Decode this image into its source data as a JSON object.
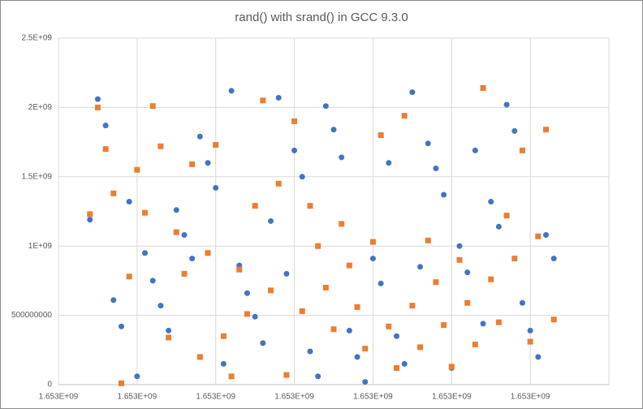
{
  "chart_data": {
    "type": "scatter",
    "title": "rand() with srand() in GCC 9.3.0",
    "x": [
      1653000004,
      1653000005,
      1653000006,
      1653000007,
      1653000008,
      1653000009,
      1653000010,
      1653000011,
      1653000012,
      1653000013,
      1653000014,
      1653000015,
      1653000016,
      1653000017,
      1653000018,
      1653000019,
      1653000020,
      1653000021,
      1653000022,
      1653000023,
      1653000024,
      1653000025,
      1653000026,
      1653000027,
      1653000028,
      1653000029,
      1653000030,
      1653000031,
      1653000032,
      1653000033,
      1653000034,
      1653000035,
      1653000036,
      1653000037,
      1653000038,
      1653000039,
      1653000040,
      1653000041,
      1653000042,
      1653000043,
      1653000044,
      1653000045,
      1653000046,
      1653000047,
      1653000048,
      1653000049,
      1653000050,
      1653000051,
      1653000052,
      1653000053,
      1653000054,
      1653000055,
      1653000056,
      1653000057,
      1653000058,
      1653000059,
      1653000060,
      1653000061,
      1653000062,
      1653000063
    ],
    "series": [
      {
        "color": "#4472c4",
        "marker": "circle",
        "values": [
          1190000000,
          2060000000,
          1870000000,
          610000000,
          420000000,
          1320000000,
          60000000,
          950000000,
          750000000,
          570000000,
          390000000,
          1260000000,
          1080000000,
          910000000,
          1790000000,
          1600000000,
          1420000000,
          150000000,
          2120000000,
          860000000,
          660000000,
          490000000,
          300000000,
          1180000000,
          2070000000,
          800000000,
          1690000000,
          1500000000,
          240000000,
          60000000,
          2010000000,
          1840000000,
          1640000000,
          390000000,
          200000000,
          20000000,
          910000000,
          730000000,
          1600000000,
          350000000,
          150000000,
          2110000000,
          850000000,
          1740000000,
          1560000000,
          1370000000,
          120000000,
          1000000000,
          810000000,
          1690000000,
          440000000,
          1320000000,
          1140000000,
          2020000000,
          1830000000,
          590000000,
          390000000,
          200000000,
          1080000000,
          910000000
        ]
      },
      {
        "color": "#ed7d31",
        "marker": "square",
        "values": [
          1230000000,
          2000000000,
          1700000000,
          1380000000,
          10000000,
          780000000,
          1550000000,
          1240000000,
          2010000000,
          1720000000,
          340000000,
          1100000000,
          800000000,
          1590000000,
          200000000,
          950000000,
          1730000000,
          350000000,
          60000000,
          830000000,
          510000000,
          1290000000,
          2050000000,
          680000000,
          1450000000,
          70000000,
          1900000000,
          530000000,
          1290000000,
          1000000000,
          700000000,
          400000000,
          1160000000,
          860000000,
          560000000,
          260000000,
          1030000000,
          1800000000,
          420000000,
          120000000,
          1940000000,
          570000000,
          270000000,
          1040000000,
          740000000,
          430000000,
          130000000,
          900000000,
          590000000,
          290000000,
          2140000000,
          760000000,
          450000000,
          1220000000,
          910000000,
          1690000000,
          310000000,
          1070000000,
          1840000000,
          470000000
        ]
      }
    ],
    "xlim": [
      1653000000,
      1653000070
    ],
    "xticks": [
      {
        "value": 1653000000,
        "label": "1.653E+09"
      },
      {
        "value": 1653000010,
        "label": "1.653E+09"
      },
      {
        "value": 1653000020,
        "label": "1.653E+09"
      },
      {
        "value": 1653000030,
        "label": "1.653E+09"
      },
      {
        "value": 1653000040,
        "label": "1.653E+09"
      },
      {
        "value": 1653000050,
        "label": "1.653E+09"
      },
      {
        "value": 1653000060,
        "label": "1.653E+09"
      }
    ],
    "ylim": [
      0,
      2500000000
    ],
    "yticks": [
      0,
      500000000,
      {
        "value": 1000000000,
        "label": "1E+09"
      },
      {
        "value": 1500000000,
        "label": "1.5E+09"
      },
      {
        "value": 2000000000,
        "label": "2E+09"
      },
      {
        "value": 2500000000,
        "label": "2.5E+09"
      }
    ],
    "grid": true
  }
}
